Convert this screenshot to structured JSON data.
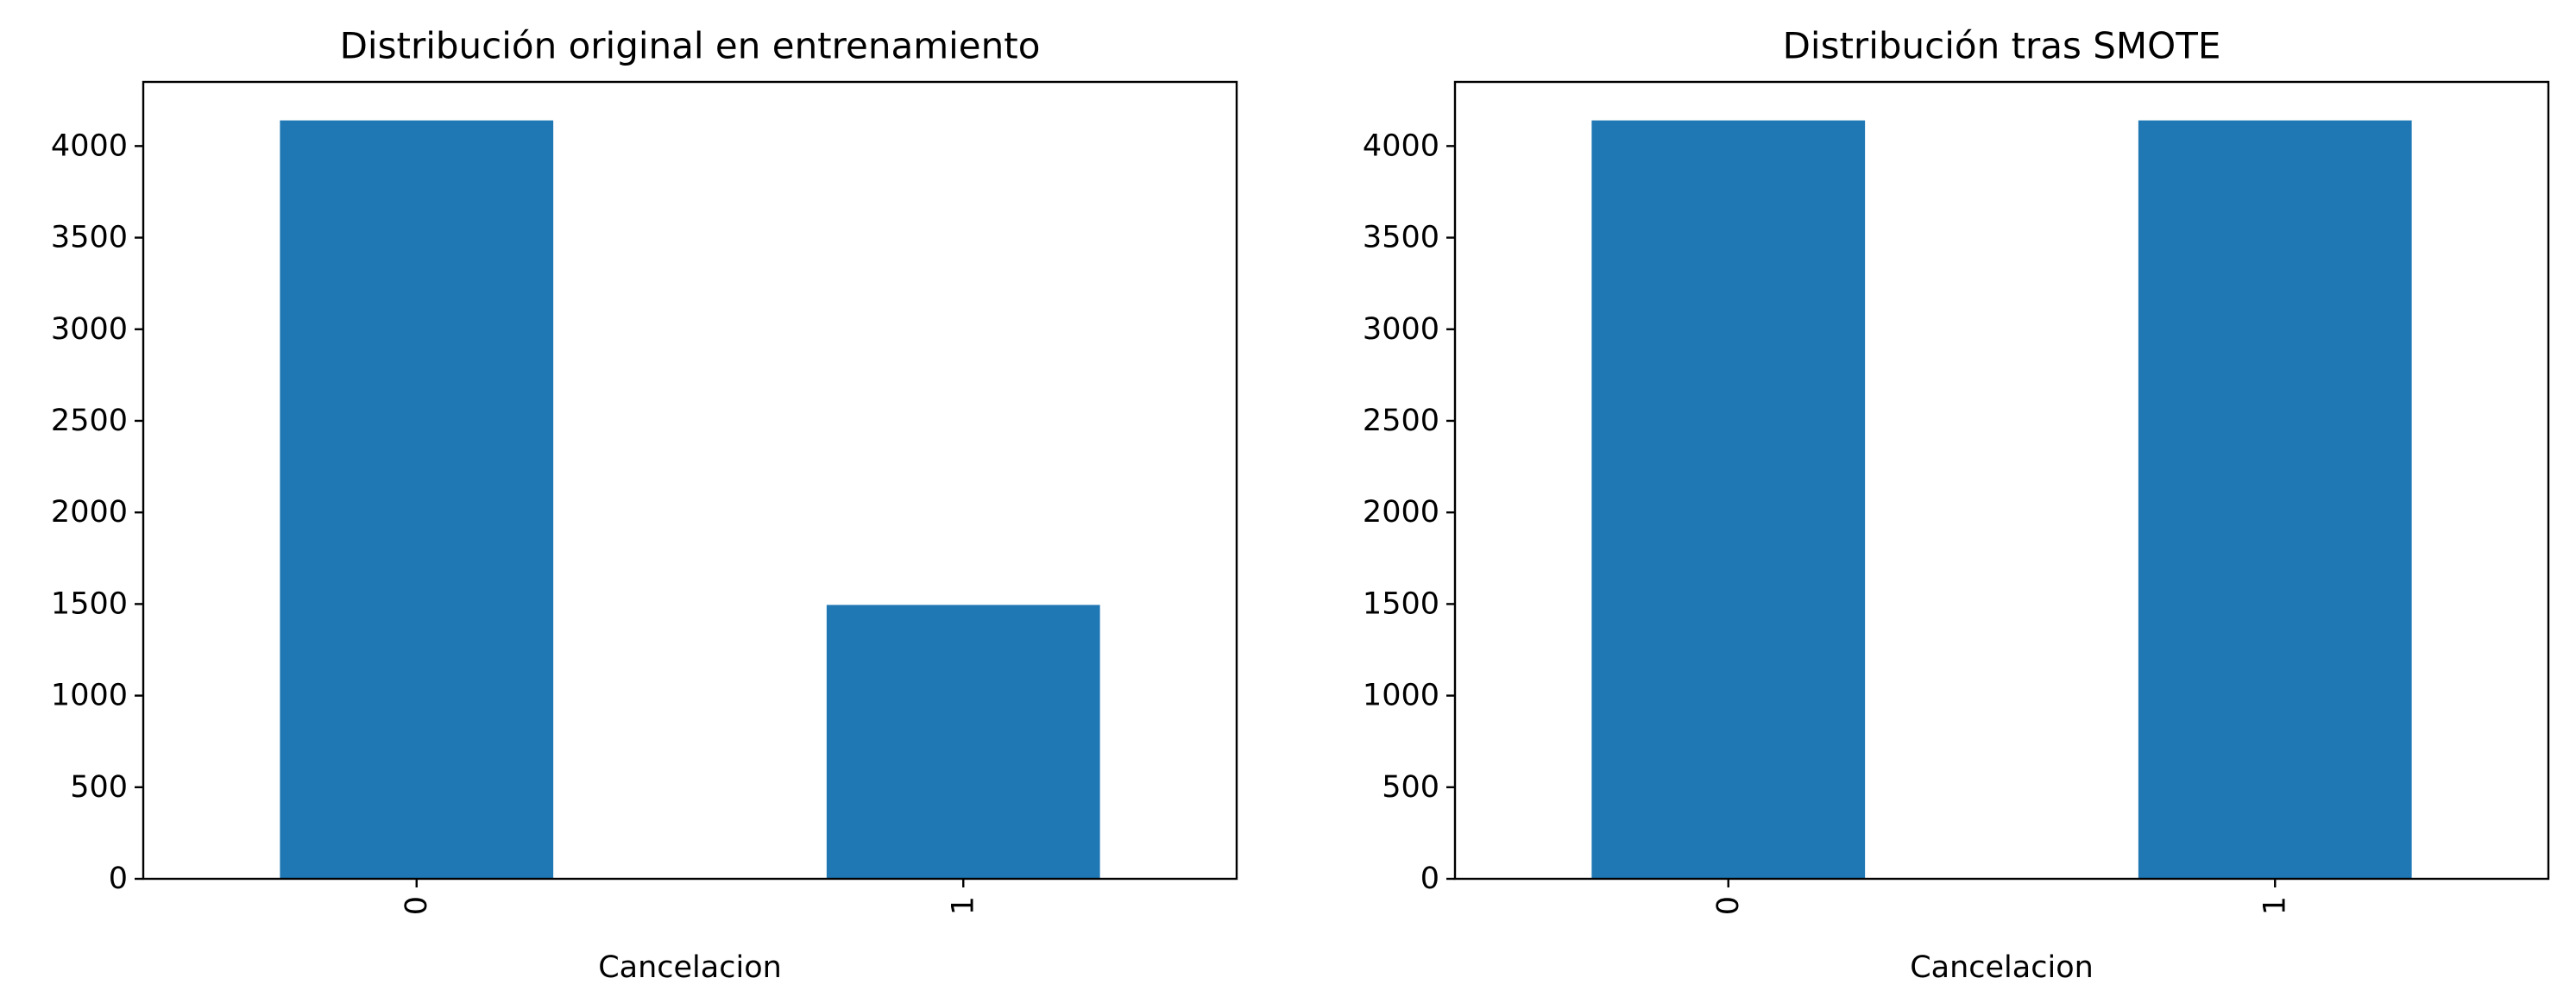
{
  "colors": {
    "bar": "#1f77b4",
    "axes": "#000000",
    "background": "#ffffff"
  },
  "chart_data": [
    {
      "type": "bar",
      "title": "Distribución original en entrenamiento",
      "xlabel": "Cancelacion",
      "ylabel": "",
      "categories": [
        "0",
        "1"
      ],
      "values": [
        4140,
        1495
      ],
      "ylim": [
        0,
        4350
      ],
      "yticks": [
        0,
        500,
        1000,
        1500,
        2000,
        2500,
        3000,
        3500,
        4000
      ],
      "xtick_rotation": "vertical",
      "grid": false,
      "legend": "none"
    },
    {
      "type": "bar",
      "title": "Distribución tras SMOTE",
      "xlabel": "Cancelacion",
      "ylabel": "",
      "categories": [
        "0",
        "1"
      ],
      "values": [
        4140,
        4140
      ],
      "ylim": [
        0,
        4350
      ],
      "yticks": [
        0,
        500,
        1000,
        1500,
        2000,
        2500,
        3000,
        3500,
        4000
      ],
      "xtick_rotation": "vertical",
      "grid": false,
      "legend": "none"
    }
  ]
}
